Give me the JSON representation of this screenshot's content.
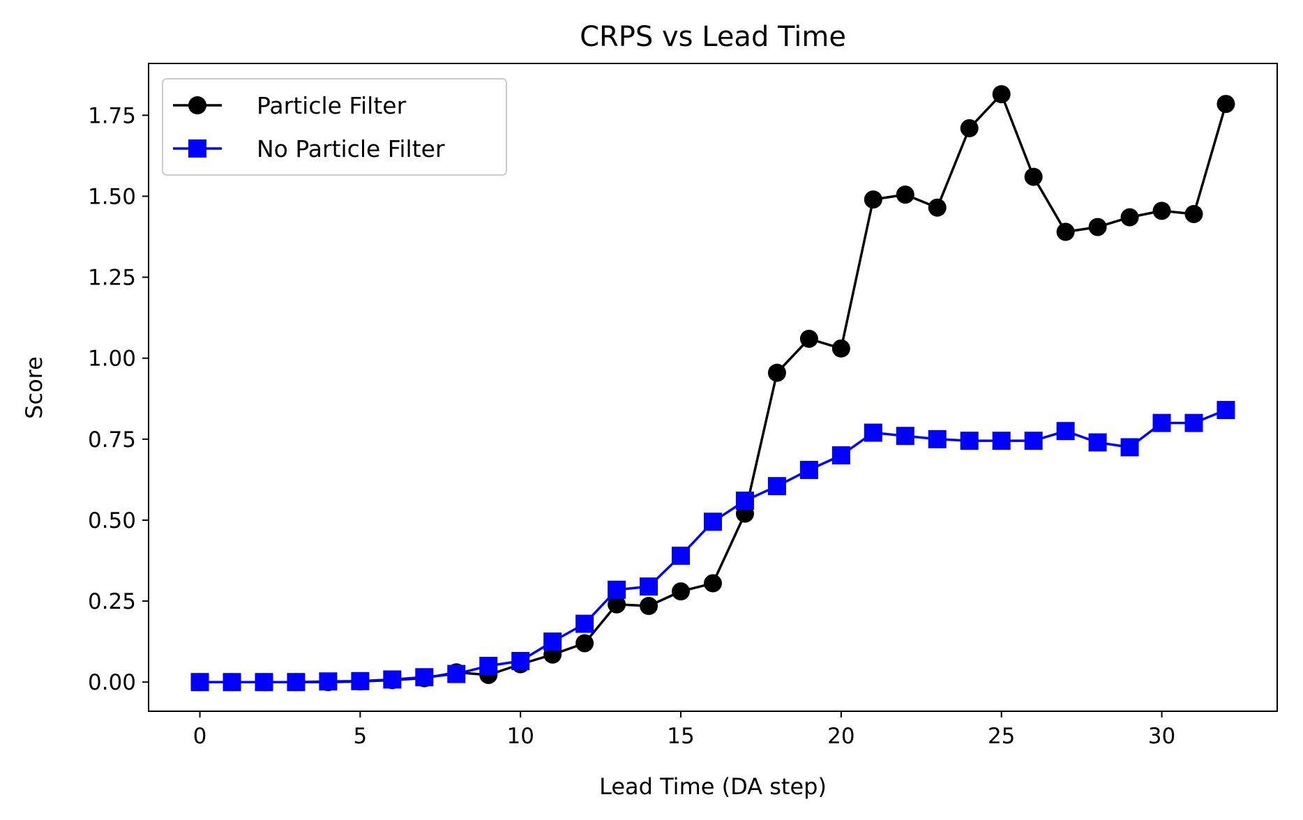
{
  "chart_data": {
    "type": "line",
    "title": "CRPS vs Lead Time",
    "xlabel": "Lead Time (DA step)",
    "ylabel": "Score",
    "xlim": [
      -1.6,
      33.6
    ],
    "ylim": [
      -0.09,
      1.91
    ],
    "xticks": [
      "0",
      "5",
      "10",
      "15",
      "20",
      "25",
      "30"
    ],
    "yticks": [
      "0.00",
      "0.25",
      "0.50",
      "0.75",
      "1.00",
      "1.25",
      "1.50",
      "1.75"
    ],
    "grid": false,
    "legend_position": "top-left",
    "x": [
      0,
      1,
      2,
      3,
      4,
      5,
      6,
      7,
      8,
      9,
      10,
      11,
      12,
      13,
      14,
      15,
      16,
      17,
      18,
      19,
      20,
      21,
      22,
      23,
      24,
      25,
      26,
      27,
      28,
      29,
      30,
      31,
      32
    ],
    "series": [
      {
        "name": "Particle Filter",
        "color": "#000000",
        "marker": "circle",
        "values": [
          0.0,
          0.0,
          0.0,
          0.0,
          0.0,
          0.002,
          0.006,
          0.012,
          0.03,
          0.022,
          0.055,
          0.085,
          0.12,
          0.24,
          0.235,
          0.28,
          0.305,
          0.52,
          0.955,
          1.06,
          1.03,
          1.49,
          1.505,
          1.465,
          1.71,
          1.815,
          1.56,
          1.39,
          1.405,
          1.435,
          1.455,
          1.445,
          1.785
        ]
      },
      {
        "name": "No Particle Filter",
        "color": "#0000ff",
        "marker": "square",
        "values": [
          0.0,
          0.0,
          0.0,
          0.0,
          0.002,
          0.003,
          0.008,
          0.015,
          0.025,
          0.05,
          0.065,
          0.125,
          0.18,
          0.285,
          0.295,
          0.39,
          0.495,
          0.56,
          0.605,
          0.655,
          0.7,
          0.77,
          0.76,
          0.75,
          0.745,
          0.745,
          0.745,
          0.775,
          0.74,
          0.725,
          0.8,
          0.8,
          0.84
        ]
      }
    ]
  }
}
